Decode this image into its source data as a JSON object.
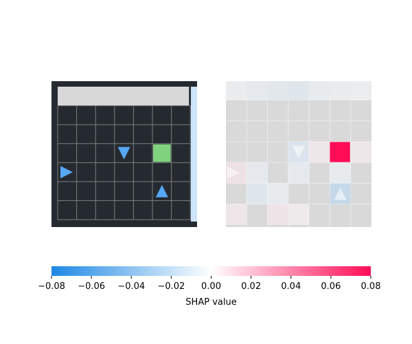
{
  "chart_data": {
    "type": "heatmap",
    "panels": [
      {
        "name": "input-observation",
        "grid_size": [
          7,
          7
        ],
        "background_color": "#252a30",
        "grid_line_color": "#7f7f7f",
        "top_bar_color": "#d8d8d8",
        "right_bar_color": "#cde4fb",
        "goal": {
          "row": 3,
          "col": 5,
          "color": "#7fd37f"
        },
        "agents": [
          {
            "row": 3,
            "col": 3,
            "direction": "down",
            "color": "#56a8f4"
          },
          {
            "row": 4,
            "col": 0,
            "direction": "right",
            "color": "#56a8f4"
          },
          {
            "row": 5,
            "col": 5,
            "direction": "up",
            "color": "#56a8f4"
          }
        ]
      },
      {
        "name": "shap-overlay",
        "grid_size": [
          7,
          7
        ],
        "base_color": "#d9d9d9",
        "cells": [
          {
            "row": 0,
            "col": 0,
            "value": -0.003
          },
          {
            "row": 0,
            "col": 1,
            "value": -0.006
          },
          {
            "row": 0,
            "col": 2,
            "value": -0.008
          },
          {
            "row": 0,
            "col": 3,
            "value": -0.01
          },
          {
            "row": 0,
            "col": 4,
            "value": -0.004
          },
          {
            "row": 0,
            "col": 5,
            "value": -0.002
          },
          {
            "row": 0,
            "col": 6,
            "value": -0.001
          },
          {
            "row": 3,
            "col": 3,
            "value": -0.012
          },
          {
            "row": 3,
            "col": 4,
            "value": 0.004
          },
          {
            "row": 3,
            "col": 5,
            "value": 0.08
          },
          {
            "row": 3,
            "col": 6,
            "value": 0.004
          },
          {
            "row": 4,
            "col": 0,
            "value": 0.008
          },
          {
            "row": 4,
            "col": 1,
            "value": -0.006
          },
          {
            "row": 4,
            "col": 3,
            "value": -0.006
          },
          {
            "row": 4,
            "col": 5,
            "value": -0.004
          },
          {
            "row": 5,
            "col": 1,
            "value": -0.01
          },
          {
            "row": 5,
            "col": 2,
            "value": -0.004
          },
          {
            "row": 5,
            "col": 5,
            "value": -0.026
          },
          {
            "row": 6,
            "col": 0,
            "value": 0.005
          },
          {
            "row": 6,
            "col": 2,
            "value": 0.006
          },
          {
            "row": 6,
            "col": 3,
            "value": 0.003
          }
        ]
      }
    ],
    "colorbar": {
      "label": "SHAP value",
      "range": [
        -0.08,
        0.08
      ],
      "ticks": [
        -0.08,
        -0.06,
        -0.04,
        -0.02,
        0.0,
        0.02,
        0.04,
        0.06,
        0.08
      ],
      "tick_labels": [
        "−0.08",
        "−0.06",
        "−0.04",
        "−0.02",
        "0.00",
        "0.02",
        "0.04",
        "0.06",
        "0.08"
      ],
      "negative_color": "#1e88e5",
      "neutral_color": "#ffffff",
      "positive_color": "#ff0d57"
    }
  }
}
